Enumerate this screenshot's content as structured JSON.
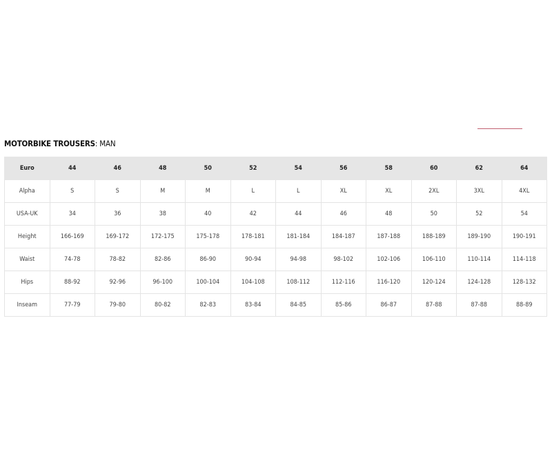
{
  "title": {
    "bold": "MOTORBIKE TROUSERS",
    "rest": ": MAN"
  },
  "colors": {
    "header_bg": "#e6e6e6",
    "accent_line": "#c06070"
  },
  "table": {
    "header": [
      "Euro",
      "44",
      "46",
      "48",
      "50",
      "52",
      "54",
      "56",
      "58",
      "60",
      "62",
      "64"
    ],
    "rows": [
      [
        "Alpha",
        "S",
        "S",
        "M",
        "M",
        "L",
        "L",
        "XL",
        "XL",
        "2XL",
        "3XL",
        "4XL"
      ],
      [
        "USA-UK",
        "34",
        "36",
        "38",
        "40",
        "42",
        "44",
        "46",
        "48",
        "50",
        "52",
        "54"
      ],
      [
        "Height",
        "166-169",
        "169-172",
        "172-175",
        "175-178",
        "178-181",
        "181-184",
        "184-187",
        "187-188",
        "188-189",
        "189-190",
        "190-191"
      ],
      [
        "Waist",
        "74-78",
        "78-82",
        "82-86",
        "86-90",
        "90-94",
        "94-98",
        "98-102",
        "102-106",
        "106-110",
        "110-114",
        "114-118"
      ],
      [
        "Hips",
        "88-92",
        "92-96",
        "96-100",
        "100-104",
        "104-108",
        "108-112",
        "112-116",
        "116-120",
        "120-124",
        "124-128",
        "128-132"
      ],
      [
        "Inseam",
        "77-79",
        "79-80",
        "80-82",
        "82-83",
        "83-84",
        "84-85",
        "85-86",
        "86-87",
        "87-88",
        "87-88",
        "88-89"
      ]
    ]
  }
}
